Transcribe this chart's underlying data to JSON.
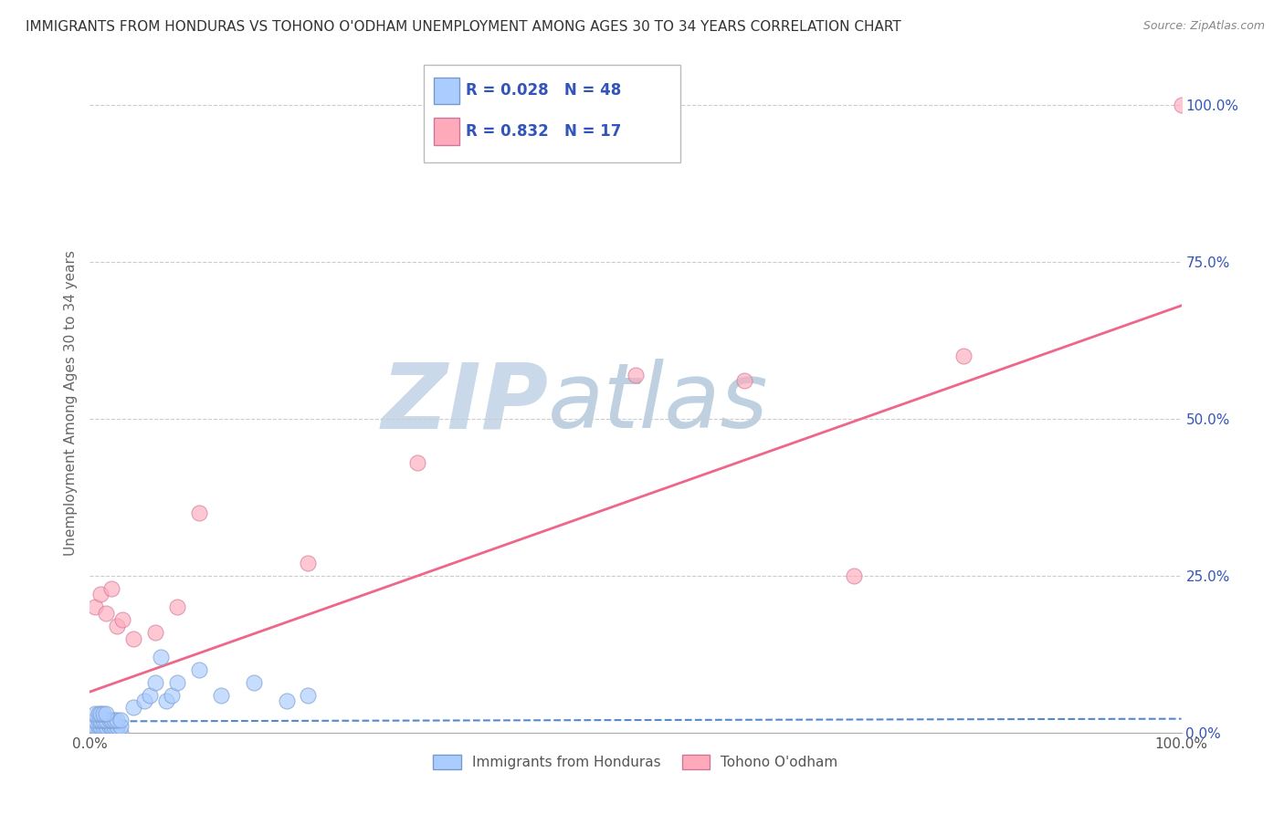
{
  "title": "IMMIGRANTS FROM HONDURAS VS TOHONO O'ODHAM UNEMPLOYMENT AMONG AGES 30 TO 34 YEARS CORRELATION CHART",
  "source": "Source: ZipAtlas.com",
  "ylabel": "Unemployment Among Ages 30 to 34 years",
  "xlim": [
    0.0,
    1.0
  ],
  "ylim": [
    0.0,
    1.05
  ],
  "ytick_positions": [
    0.0,
    0.25,
    0.5,
    0.75,
    1.0
  ],
  "ytick_labels": [
    "0.0%",
    "25.0%",
    "50.0%",
    "75.0%",
    "100.0%"
  ],
  "xtick_positions": [
    0.0,
    1.0
  ],
  "xtick_labels": [
    "0.0%",
    "100.0%"
  ],
  "group1_color": "#aaccff",
  "group1_edge_color": "#7799cc",
  "group1_line_color": "#5588cc",
  "group2_color": "#ffaabb",
  "group2_edge_color": "#cc7799",
  "group2_line_color": "#ee6688",
  "legend_label1": "Immigrants from Honduras",
  "legend_label2": "Tohono O'odham",
  "R1": 0.028,
  "N1": 48,
  "R2": 0.832,
  "N2": 17,
  "legend_text_color": "#3355bb",
  "watermark_zip": "ZIP",
  "watermark_atlas": "atlas",
  "watermark_color_zip": "#c5d5e8",
  "watermark_color_atlas": "#b8ccdd",
  "background_color": "#ffffff",
  "grid_color": "#cccccc",
  "title_fontsize": 11,
  "axis_label_fontsize": 11,
  "tick_fontsize": 11,
  "group1_x": [
    0.005,
    0.008,
    0.01,
    0.012,
    0.015,
    0.018,
    0.02,
    0.022,
    0.025,
    0.028,
    0.005,
    0.008,
    0.01,
    0.012,
    0.015,
    0.018,
    0.02,
    0.022,
    0.025,
    0.028,
    0.005,
    0.008,
    0.01,
    0.012,
    0.015,
    0.018,
    0.02,
    0.022,
    0.025,
    0.028,
    0.005,
    0.008,
    0.01,
    0.012,
    0.015,
    0.04,
    0.05,
    0.055,
    0.06,
    0.065,
    0.07,
    0.075,
    0.08,
    0.1,
    0.12,
    0.15,
    0.18,
    0.2
  ],
  "group1_y": [
    0.0,
    0.0,
    0.0,
    0.0,
    0.0,
    0.0,
    0.0,
    0.0,
    0.0,
    0.0,
    0.01,
    0.01,
    0.01,
    0.01,
    0.01,
    0.01,
    0.01,
    0.01,
    0.01,
    0.01,
    0.02,
    0.02,
    0.02,
    0.02,
    0.02,
    0.02,
    0.02,
    0.02,
    0.02,
    0.02,
    0.03,
    0.03,
    0.03,
    0.03,
    0.03,
    0.04,
    0.05,
    0.06,
    0.08,
    0.12,
    0.05,
    0.06,
    0.08,
    0.1,
    0.06,
    0.08,
    0.05,
    0.06
  ],
  "group2_x": [
    0.005,
    0.01,
    0.015,
    0.02,
    0.025,
    0.03,
    0.04,
    0.06,
    0.08,
    0.1,
    0.2,
    0.3,
    0.5,
    0.6,
    0.7,
    0.8,
    1.0
  ],
  "group2_y": [
    0.2,
    0.22,
    0.19,
    0.23,
    0.17,
    0.18,
    0.15,
    0.16,
    0.2,
    0.35,
    0.27,
    0.43,
    0.57,
    0.56,
    0.25,
    0.6,
    1.0
  ],
  "line1_x0": 0.0,
  "line1_y0": 0.018,
  "line1_x1": 1.0,
  "line1_y1": 0.022,
  "line2_x0": 0.0,
  "line2_y0": 0.065,
  "line2_x1": 1.0,
  "line2_y1": 0.68
}
